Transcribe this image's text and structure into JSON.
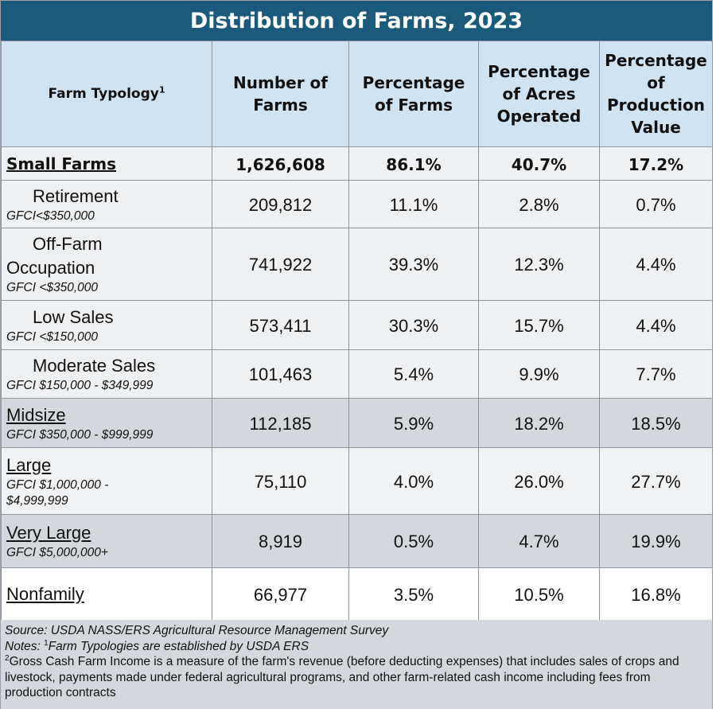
{
  "title": "Distribution of Farms, 2023",
  "headers": {
    "typology": "Farm Typology",
    "typology_sup": "1",
    "number": "Number of Farms",
    "pct_farms": "Percentage of Farms",
    "pct_acres": "Percentage of Acres Operated",
    "pct_value": "Percentage of Production Value"
  },
  "rows": {
    "small": {
      "name": "Small Farms",
      "number": "1,626,608",
      "pct_farms": "86.1%",
      "pct_acres": "40.7%",
      "pct_value": "17.2%"
    },
    "retirement": {
      "name": "Retirement",
      "gfci": "GFCI<$350,000",
      "number": "209,812",
      "pct_farms": "11.1%",
      "pct_acres": "2.8%",
      "pct_value": "0.7%"
    },
    "offfarm": {
      "name1": "Off-Farm",
      "name2": "Occupation",
      "gfci": "GFCI <$350,000",
      "number": "741,922",
      "pct_farms": "39.3%",
      "pct_acres": "12.3%",
      "pct_value": "4.4%"
    },
    "lowsales": {
      "name": "Low Sales",
      "gfci": "GFCI <$150,000",
      "number": "573,411",
      "pct_farms": "30.3%",
      "pct_acres": "15.7%",
      "pct_value": "4.4%"
    },
    "modsales": {
      "name": "Moderate Sales",
      "gfci": "GFCI $150,000 - $349,999",
      "number": "101,463",
      "pct_farms": "5.4%",
      "pct_acres": "9.9%",
      "pct_value": "7.7%"
    },
    "midsize": {
      "name": "Midsize",
      "gfci": "GFCI $350,000 - $999,999",
      "number": "112,185",
      "pct_farms": "5.9%",
      "pct_acres": "18.2%",
      "pct_value": "18.5%"
    },
    "large": {
      "name": "Large",
      "gfci1": "GFCI $1,000,000 -",
      "gfci2": "$4,999,999",
      "number": "75,110",
      "pct_farms": "4.0%",
      "pct_acres": "26.0%",
      "pct_value": "27.7%"
    },
    "verylarge": {
      "name": "Very Large",
      "gfci": "GFCI $5,000,000+",
      "number": "8,919",
      "pct_farms": "0.5%",
      "pct_acres": "4.7%",
      "pct_value": "19.9%"
    },
    "nonfamily": {
      "name": "Nonfamily",
      "number": "66,977",
      "pct_farms": "3.5%",
      "pct_acres": "10.5%",
      "pct_value": "16.8%"
    }
  },
  "notes": {
    "source": "Source: USDA NASS/ERS Agricultural Resource Management Survey",
    "notes_prefix": "Notes: ",
    "note1_sup": "1",
    "note1": "Farm Typologies are established by USDA ERS",
    "note2_sup": "2",
    "note2": "Gross Cash Farm Income is a measure of the farm's revenue (before deducting expenses) that includes sales of crops and livestock, payments made under federal agricultural programs, and other farm-related cash income including fees from production contracts"
  }
}
